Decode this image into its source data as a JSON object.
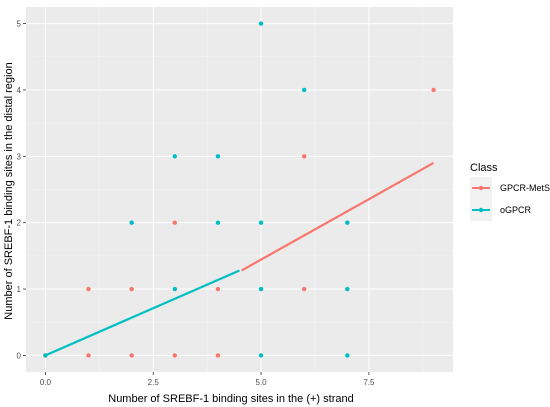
{
  "chart_data": {
    "type": "scatter",
    "title": "",
    "xlabel": "Number of SREBF-1 binding sites in the (+) strand",
    "ylabel": "Number of SREBF-1 binding sites in the distal region",
    "xlim": [
      -0.45,
      9.45
    ],
    "ylim": [
      -0.25,
      5.25
    ],
    "x_ticks": [
      0,
      2.5,
      5,
      7.5
    ],
    "x_tick_labels": [
      "0.0",
      "2.5",
      "5.0",
      "7.5"
    ],
    "y_ticks": [
      0,
      1,
      2,
      3,
      4,
      5
    ],
    "y_tick_labels": [
      "0",
      "1",
      "2",
      "3",
      "4",
      "5"
    ],
    "grid": true,
    "legend": {
      "title": "Class",
      "position": "right"
    },
    "series": [
      {
        "name": "GPCR-MetS",
        "color": "#F8766D",
        "points": [
          [
            0,
            0
          ],
          [
            1,
            1
          ],
          [
            1,
            0
          ],
          [
            2,
            1
          ],
          [
            2,
            0
          ],
          [
            3,
            2
          ],
          [
            3,
            0
          ],
          [
            4,
            1
          ],
          [
            4,
            0
          ],
          [
            5,
            1
          ],
          [
            6,
            3
          ],
          [
            6,
            1
          ],
          [
            9,
            4
          ]
        ],
        "fit_line": [
          [
            4.55,
            1.28
          ],
          [
            9,
            2.9
          ]
        ]
      },
      {
        "name": "oGPCR",
        "color": "#00BFC4",
        "points": [
          [
            0,
            0
          ],
          [
            2,
            2
          ],
          [
            3,
            3
          ],
          [
            3,
            1
          ],
          [
            4,
            3
          ],
          [
            4,
            2
          ],
          [
            5,
            5
          ],
          [
            5,
            2
          ],
          [
            5,
            1
          ],
          [
            5,
            0
          ],
          [
            6,
            4
          ],
          [
            7,
            2
          ],
          [
            7,
            1
          ],
          [
            7,
            0
          ]
        ],
        "fit_line": [
          [
            0,
            0
          ],
          [
            4.5,
            1.28
          ]
        ]
      }
    ]
  }
}
